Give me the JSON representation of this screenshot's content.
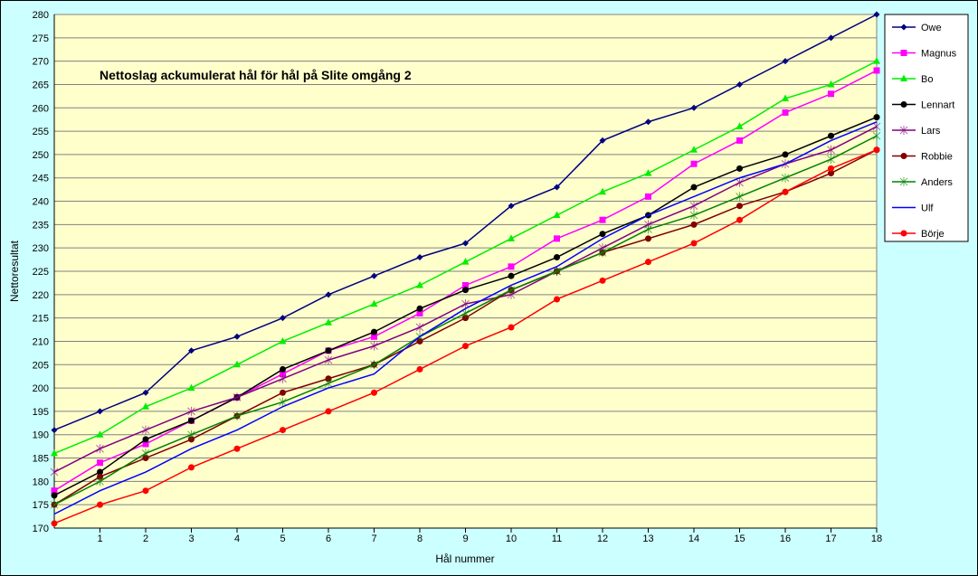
{
  "chart_data": {
    "type": "line",
    "title": "Nettoslag ackumulerat hål för hål på Slite omgång 2",
    "xlabel": "Hål nummer",
    "ylabel": "Nettoresultat",
    "ylim": [
      170,
      280
    ],
    "ystep": 5,
    "x": [
      0,
      1,
      2,
      3,
      4,
      5,
      6,
      7,
      8,
      9,
      10,
      11,
      12,
      13,
      14,
      15,
      16,
      17,
      18
    ],
    "x_tick_labels": [
      "1",
      "2",
      "3",
      "4",
      "5",
      "6",
      "7",
      "8",
      "9",
      "10",
      "11",
      "12",
      "13",
      "14",
      "15",
      "16",
      "17",
      "18"
    ],
    "grid": true,
    "legend_position": "right",
    "series": [
      {
        "name": "Owe",
        "color": "#000080",
        "marker": "diamond",
        "values": [
          191,
          195,
          199,
          208,
          211,
          215,
          220,
          224,
          228,
          231,
          239,
          243,
          253,
          257,
          260,
          265,
          270,
          275,
          280
        ]
      },
      {
        "name": "Magnus",
        "color": "#ff00ff",
        "marker": "square",
        "values": [
          178,
          184,
          188,
          193,
          198,
          203,
          208,
          211,
          216,
          222,
          226,
          232,
          236,
          241,
          248,
          253,
          259,
          263,
          268
        ]
      },
      {
        "name": "Bo",
        "color": "#00ee00",
        "marker": "triangle",
        "values": [
          186,
          190,
          196,
          200,
          205,
          210,
          214,
          218,
          222,
          227,
          232,
          237,
          242,
          246,
          251,
          256,
          262,
          265,
          270
        ]
      },
      {
        "name": "Lennart",
        "color": "#000000",
        "marker": "circle",
        "values": [
          177,
          182,
          189,
          193,
          198,
          204,
          208,
          212,
          217,
          221,
          224,
          228,
          233,
          237,
          243,
          247,
          250,
          254,
          258
        ]
      },
      {
        "name": "Lars",
        "color": "#800080",
        "marker": "star",
        "values": [
          182,
          187,
          191,
          195,
          198,
          202,
          206,
          209,
          213,
          218,
          220,
          225,
          230,
          235,
          239,
          244,
          248,
          251,
          256
        ]
      },
      {
        "name": "Robbie",
        "color": "#800000",
        "marker": "circle",
        "values": [
          175,
          181,
          185,
          189,
          194,
          199,
          202,
          205,
          210,
          215,
          221,
          225,
          229,
          232,
          235,
          239,
          242,
          246,
          251
        ]
      },
      {
        "name": "Anders",
        "color": "#008000",
        "marker": "star",
        "values": [
          175,
          180,
          186,
          190,
          194,
          197,
          201,
          205,
          211,
          216,
          221,
          225,
          229,
          234,
          237,
          241,
          245,
          249,
          254
        ]
      },
      {
        "name": "Ulf",
        "color": "#0000ff",
        "marker": "none",
        "values": [
          173,
          178,
          182,
          187,
          191,
          196,
          200,
          203,
          211,
          217,
          222,
          226,
          232,
          237,
          241,
          245,
          248,
          253,
          257
        ]
      },
      {
        "name": "Börje",
        "color": "#ff0000",
        "marker": "circle",
        "values": [
          171,
          175,
          178,
          183,
          187,
          191,
          195,
          199,
          204,
          209,
          213,
          219,
          223,
          227,
          231,
          236,
          242,
          247,
          251
        ]
      }
    ]
  }
}
